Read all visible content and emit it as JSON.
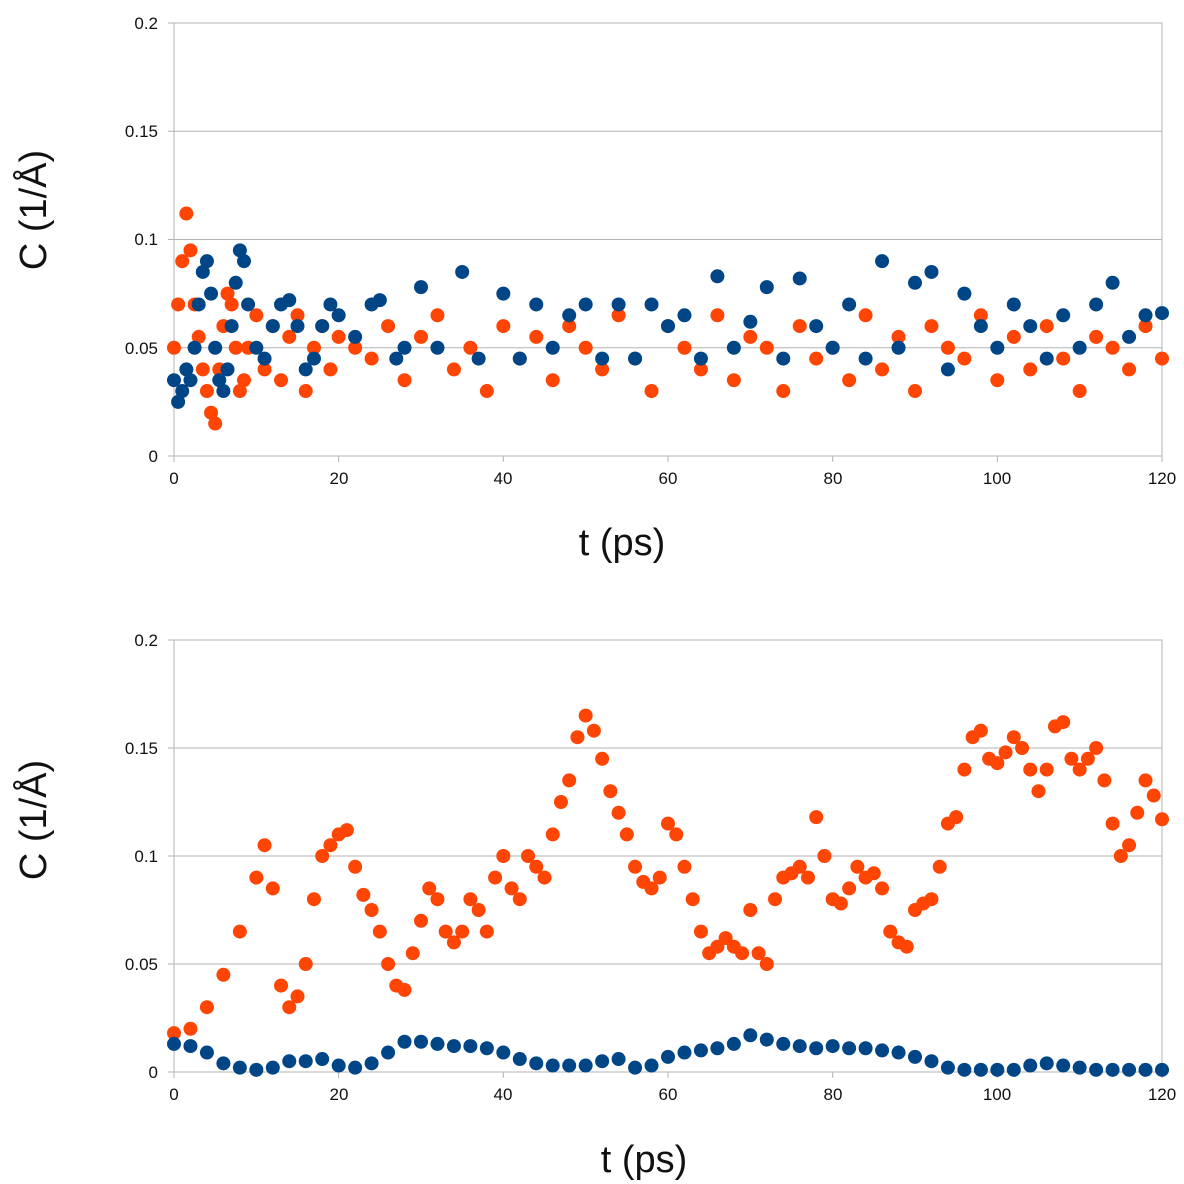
{
  "colors": {
    "orange": "#fe4503",
    "blue": "#004586",
    "grid": "#b3b3b3",
    "axis": "#b3b3b3"
  },
  "chart_data": [
    {
      "type": "scatter",
      "title": "",
      "xlabel": "t (ps)",
      "ylabel": "C (1/Å)",
      "xlim": [
        0,
        120
      ],
      "ylim": [
        0,
        0.2
      ],
      "xticks": [
        "0",
        "20",
        "40",
        "60",
        "80",
        "100",
        "120"
      ],
      "yticks": [
        "0",
        "0.05",
        "0.1",
        "0.15",
        "0.2"
      ],
      "grid": true,
      "legend": "none",
      "series": [
        {
          "color": "#fe4503",
          "x": [
            0,
            0.5,
            1,
            1.5,
            2,
            2.5,
            3,
            3.5,
            4,
            4.5,
            5,
            5.5,
            6,
            6.5,
            7,
            7.5,
            8,
            8.5,
            9,
            10,
            11,
            12,
            13,
            14,
            15,
            16,
            17,
            18,
            19,
            20,
            22,
            24,
            26,
            28,
            30,
            32,
            34,
            36,
            38,
            40,
            42,
            44,
            46,
            48,
            50,
            52,
            54,
            56,
            58,
            60,
            62,
            64,
            66,
            68,
            70,
            72,
            74,
            76,
            78,
            80,
            82,
            84,
            86,
            88,
            90,
            92,
            94,
            96,
            98,
            100,
            102,
            104,
            106,
            108,
            110,
            112,
            114,
            116,
            118,
            120
          ],
          "y": [
            0.05,
            0.07,
            0.09,
            0.112,
            0.095,
            0.07,
            0.055,
            0.04,
            0.03,
            0.02,
            0.015,
            0.04,
            0.06,
            0.075,
            0.07,
            0.05,
            0.03,
            0.035,
            0.05,
            0.065,
            0.04,
            0.06,
            0.035,
            0.055,
            0.065,
            0.03,
            0.05,
            0.06,
            0.04,
            0.055,
            0.05,
            0.045,
            0.06,
            0.035,
            0.055,
            0.065,
            0.04,
            0.05,
            0.03,
            0.06,
            0.045,
            0.055,
            0.035,
            0.06,
            0.05,
            0.04,
            0.065,
            0.045,
            0.03,
            0.06,
            0.05,
            0.04,
            0.065,
            0.035,
            0.055,
            0.05,
            0.03,
            0.06,
            0.045,
            0.05,
            0.035,
            0.065,
            0.04,
            0.055,
            0.03,
            0.06,
            0.05,
            0.045,
            0.065,
            0.035,
            0.055,
            0.04,
            0.06,
            0.045,
            0.03,
            0.055,
            0.05,
            0.04,
            0.06,
            0.045
          ]
        },
        {
          "color": "#004586",
          "x": [
            0,
            0.5,
            1,
            1.5,
            2,
            2.5,
            3,
            3.5,
            4,
            4.5,
            5,
            5.5,
            6,
            6.5,
            7,
            7.5,
            8,
            8.5,
            9,
            10,
            11,
            12,
            13,
            14,
            15,
            16,
            17,
            18,
            19,
            20,
            22,
            24,
            25,
            27,
            28,
            30,
            32,
            35,
            37,
            40,
            42,
            44,
            46,
            48,
            50,
            52,
            54,
            56,
            58,
            60,
            62,
            64,
            66,
            68,
            70,
            72,
            74,
            76,
            78,
            80,
            82,
            84,
            86,
            88,
            90,
            92,
            94,
            96,
            98,
            100,
            102,
            104,
            106,
            108,
            110,
            112,
            114,
            116,
            118,
            120
          ],
          "y": [
            0.035,
            0.025,
            0.03,
            0.04,
            0.035,
            0.05,
            0.07,
            0.085,
            0.09,
            0.075,
            0.05,
            0.035,
            0.03,
            0.04,
            0.06,
            0.08,
            0.095,
            0.09,
            0.07,
            0.05,
            0.045,
            0.06,
            0.07,
            0.072,
            0.06,
            0.04,
            0.045,
            0.06,
            0.07,
            0.065,
            0.055,
            0.07,
            0.072,
            0.045,
            0.05,
            0.078,
            0.05,
            0.085,
            0.045,
            0.075,
            0.045,
            0.07,
            0.05,
            0.065,
            0.07,
            0.045,
            0.07,
            0.045,
            0.07,
            0.06,
            0.065,
            0.045,
            0.083,
            0.05,
            0.062,
            0.078,
            0.045,
            0.082,
            0.06,
            0.05,
            0.07,
            0.045,
            0.09,
            0.05,
            0.08,
            0.085,
            0.04,
            0.075,
            0.06,
            0.05,
            0.07,
            0.06,
            0.045,
            0.065,
            0.05,
            0.07,
            0.08,
            0.055,
            0.065,
            0.066
          ]
        }
      ]
    },
    {
      "type": "scatter",
      "title": "",
      "xlabel": "t (ps)",
      "ylabel": "C (1/Å)",
      "xlim": [
        0,
        120
      ],
      "ylim": [
        0,
        0.2
      ],
      "xticks": [
        "0",
        "20",
        "40",
        "60",
        "80",
        "100",
        "120"
      ],
      "yticks": [
        "0",
        "0.05",
        "0.1",
        "0.15",
        "0.2"
      ],
      "grid": true,
      "legend": "none",
      "series": [
        {
          "color": "#fe4503",
          "x": [
            0,
            2,
            4,
            6,
            8,
            10,
            11,
            12,
            13,
            14,
            15,
            16,
            17,
            18,
            19,
            20,
            21,
            22,
            23,
            24,
            25,
            26,
            27,
            28,
            29,
            30,
            31,
            32,
            33,
            34,
            35,
            36,
            37,
            38,
            39,
            40,
            41,
            42,
            43,
            44,
            45,
            46,
            47,
            48,
            49,
            50,
            51,
            52,
            53,
            54,
            55,
            56,
            57,
            58,
            59,
            60,
            61,
            62,
            63,
            64,
            65,
            66,
            67,
            68,
            69,
            70,
            71,
            72,
            73,
            74,
            75,
            76,
            77,
            78,
            79,
            80,
            81,
            82,
            83,
            84,
            85,
            86,
            87,
            88,
            89,
            90,
            91,
            92,
            93,
            94,
            95,
            96,
            97,
            98,
            99,
            100,
            101,
            102,
            103,
            104,
            105,
            106,
            107,
            108,
            109,
            110,
            111,
            112,
            113,
            114,
            115,
            116,
            117,
            118,
            119,
            120
          ],
          "y": [
            0.018,
            0.02,
            0.03,
            0.045,
            0.065,
            0.09,
            0.105,
            0.085,
            0.04,
            0.03,
            0.035,
            0.05,
            0.08,
            0.1,
            0.105,
            0.11,
            0.112,
            0.095,
            0.082,
            0.075,
            0.065,
            0.05,
            0.04,
            0.038,
            0.055,
            0.07,
            0.085,
            0.08,
            0.065,
            0.06,
            0.065,
            0.08,
            0.075,
            0.065,
            0.09,
            0.1,
            0.085,
            0.08,
            0.1,
            0.095,
            0.09,
            0.11,
            0.125,
            0.135,
            0.155,
            0.165,
            0.158,
            0.145,
            0.13,
            0.12,
            0.11,
            0.095,
            0.088,
            0.085,
            0.09,
            0.115,
            0.11,
            0.095,
            0.08,
            0.065,
            0.055,
            0.058,
            0.062,
            0.058,
            0.055,
            0.075,
            0.055,
            0.05,
            0.08,
            0.09,
            0.092,
            0.095,
            0.09,
            0.118,
            0.1,
            0.08,
            0.078,
            0.085,
            0.095,
            0.09,
            0.092,
            0.085,
            0.065,
            0.06,
            0.058,
            0.075,
            0.078,
            0.08,
            0.095,
            0.115,
            0.118,
            0.14,
            0.155,
            0.158,
            0.145,
            0.143,
            0.148,
            0.155,
            0.15,
            0.14,
            0.13,
            0.14,
            0.16,
            0.162,
            0.145,
            0.14,
            0.145,
            0.15,
            0.135,
            0.115,
            0.1,
            0.105,
            0.12,
            0.135,
            0.128,
            0.117
          ]
        },
        {
          "color": "#004586",
          "x": [
            0,
            2,
            4,
            6,
            8,
            10,
            12,
            14,
            16,
            18,
            20,
            22,
            24,
            26,
            28,
            30,
            32,
            34,
            36,
            38,
            40,
            42,
            44,
            46,
            48,
            50,
            52,
            54,
            56,
            58,
            60,
            62,
            64,
            66,
            68,
            70,
            72,
            74,
            76,
            78,
            80,
            82,
            84,
            86,
            88,
            90,
            92,
            94,
            96,
            98,
            100,
            102,
            104,
            106,
            108,
            110,
            112,
            114,
            116,
            118,
            120
          ],
          "y": [
            0.013,
            0.012,
            0.009,
            0.004,
            0.002,
            0.001,
            0.002,
            0.005,
            0.005,
            0.006,
            0.003,
            0.002,
            0.004,
            0.009,
            0.014,
            0.014,
            0.013,
            0.012,
            0.012,
            0.011,
            0.009,
            0.006,
            0.004,
            0.003,
            0.003,
            0.003,
            0.005,
            0.006,
            0.002,
            0.003,
            0.007,
            0.009,
            0.01,
            0.011,
            0.013,
            0.017,
            0.015,
            0.013,
            0.012,
            0.011,
            0.012,
            0.011,
            0.011,
            0.01,
            0.009,
            0.007,
            0.005,
            0.002,
            0.001,
            0.001,
            0.001,
            0.001,
            0.003,
            0.004,
            0.003,
            0.002,
            0.001,
            0.001,
            0.001,
            0.001,
            0.001
          ]
        }
      ]
    }
  ]
}
